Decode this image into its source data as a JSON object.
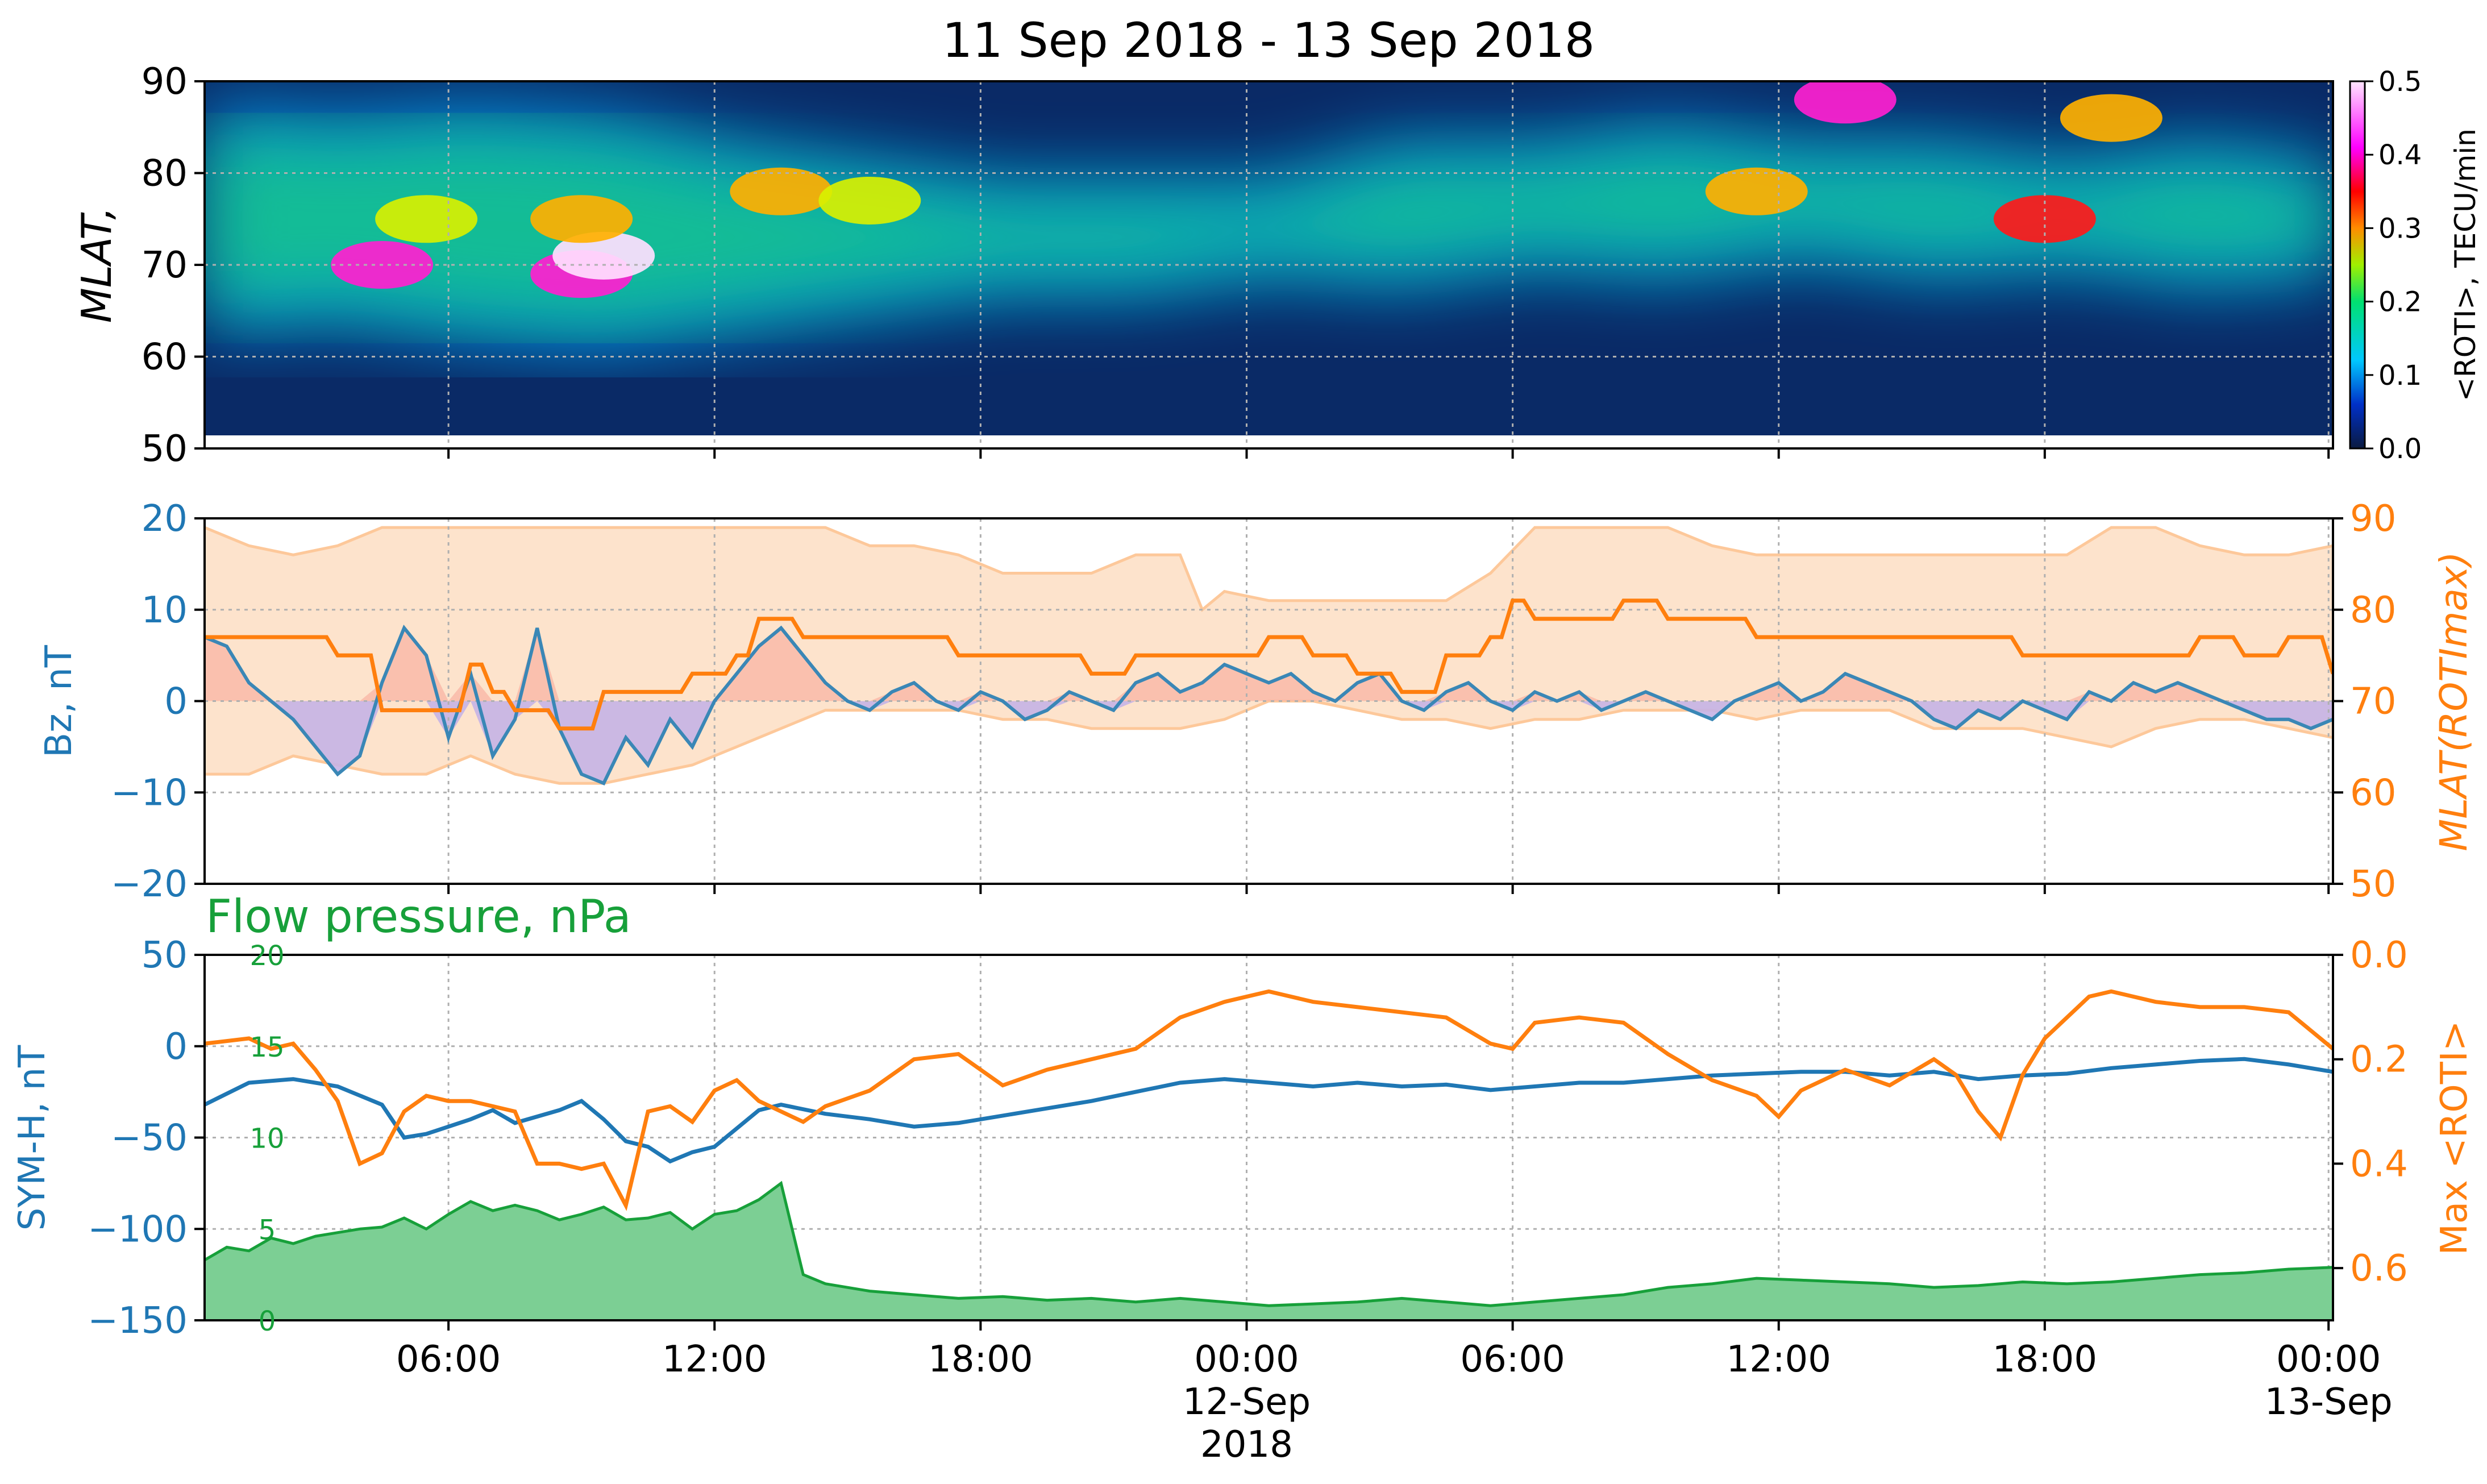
{
  "figure_title": "11 Sep 2018 - 13 Sep 2018",
  "x_axis": {
    "start_hour": 0,
    "end_hour": 48,
    "ticks": [
      {
        "hour": 5.5,
        "label": "06:00",
        "sub1": "",
        "sub2": ""
      },
      {
        "hour": 11.5,
        "label": "12:00",
        "sub1": "",
        "sub2": ""
      },
      {
        "hour": 17.5,
        "label": "18:00",
        "sub1": "",
        "sub2": ""
      },
      {
        "hour": 23.5,
        "label": "00:00",
        "sub1": "12-Sep",
        "sub2": "2018"
      },
      {
        "hour": 29.5,
        "label": "06:00",
        "sub1": "",
        "sub2": ""
      },
      {
        "hour": 35.5,
        "label": "12:00",
        "sub1": "",
        "sub2": ""
      },
      {
        "hour": 41.5,
        "label": "18:00",
        "sub1": "",
        "sub2": ""
      },
      {
        "hour": 47.9,
        "label": "00:00",
        "sub1": "13-Sep",
        "sub2": ""
      }
    ]
  },
  "colors": {
    "bz": "#3a87b6",
    "symh": "#1f77b4",
    "mlat": "#ff7f0e",
    "mlat_band": "#fde3cc",
    "mlat_band_edge": "#fdc89a",
    "flow": "#17a03a",
    "flow_fill": "#7ccf94",
    "pos_fill": "#f8b4a4",
    "neg_fill": "#c5b3e6",
    "grid": "#b0b0b0"
  },
  "chart_data": [
    {
      "type": "heatmap",
      "panel": "top",
      "ylabel": "MLAT,",
      "ylim": [
        50,
        90
      ],
      "yticks": [
        "50",
        "60",
        "70",
        "80",
        "90"
      ],
      "colorbar_label": "<ROTI>, TECU/min",
      "colorbar_range": [
        0.0,
        0.5
      ],
      "colorbar_ticks": [
        "0.0",
        "0.1",
        "0.2",
        "0.3",
        "0.4",
        "0.5"
      ],
      "hot_spots": [
        {
          "hour": 4.0,
          "mlat": 70,
          "value": 0.36
        },
        {
          "hour": 8.5,
          "mlat": 69,
          "value": 0.42
        },
        {
          "hour": 9.0,
          "mlat": 71,
          "value": 0.48
        },
        {
          "hour": 8.5,
          "mlat": 75,
          "value": 0.28
        },
        {
          "hour": 5.0,
          "mlat": 75,
          "value": 0.24
        },
        {
          "hour": 13.0,
          "mlat": 78,
          "value": 0.26
        },
        {
          "hour": 15.0,
          "mlat": 77,
          "value": 0.22
        },
        {
          "hour": 35.0,
          "mlat": 78,
          "value": 0.28
        },
        {
          "hour": 41.5,
          "mlat": 75,
          "value": 0.34
        },
        {
          "hour": 43.0,
          "mlat": 86,
          "value": 0.28
        },
        {
          "hour": 37.0,
          "mlat": 88,
          "value": 0.36
        }
      ],
      "band": {
        "hours": [
          0,
          3,
          6,
          9,
          12,
          15,
          18,
          21,
          24,
          27,
          30,
          33,
          36,
          39,
          42,
          45,
          48
        ],
        "lower": [
          64,
          65,
          63,
          62,
          64,
          66,
          68,
          68,
          70,
          69,
          71,
          70,
          72,
          70,
          71,
          69,
          70
        ],
        "upper": [
          86,
          85,
          86,
          85,
          82,
          80,
          78,
          78,
          78,
          82,
          82,
          84,
          82,
          82,
          80,
          82,
          80
        ]
      }
    },
    {
      "type": "line",
      "panel": "middle",
      "ylabel": "Bz, nT",
      "y2label": "MLAT(ROTImax)",
      "ylim": [
        -20,
        20
      ],
      "y2lim": [
        50,
        90
      ],
      "yticks": [
        "−20",
        "−10",
        "0",
        "10",
        "20"
      ],
      "y2ticks": [
        "50",
        "60",
        "70",
        "80",
        "90"
      ],
      "bz": {
        "hours": [
          0,
          0.5,
          1,
          1.5,
          2,
          2.5,
          3,
          3.5,
          4,
          4.5,
          5,
          5.5,
          6,
          6.5,
          7,
          7.5,
          8,
          8.5,
          9,
          9.5,
          10,
          10.5,
          11,
          11.5,
          12,
          12.5,
          13,
          13.5,
          14,
          14.5,
          15,
          15.5,
          16,
          16.5,
          17,
          17.5,
          18,
          18.5,
          19,
          19.5,
          20,
          20.5,
          21,
          21.5,
          22,
          22.5,
          23,
          23.5,
          24,
          24.5,
          25,
          25.5,
          26,
          26.5,
          27,
          27.5,
          28,
          28.5,
          29,
          29.5,
          30,
          30.5,
          31,
          31.5,
          32,
          32.5,
          33,
          33.5,
          34,
          34.5,
          35,
          35.5,
          36,
          36.5,
          37,
          37.5,
          38,
          38.5,
          39,
          39.5,
          40,
          40.5,
          41,
          41.5,
          42,
          42.5,
          43,
          43.5,
          44,
          44.5,
          45,
          45.5,
          46,
          46.5,
          47,
          47.5,
          48
        ],
        "values": [
          7,
          6,
          2,
          0,
          -2,
          -5,
          -8,
          -6,
          2,
          8,
          5,
          -4,
          3,
          -6,
          -2,
          8,
          -3,
          -8,
          -9,
          -4,
          -7,
          -2,
          -5,
          0,
          3,
          6,
          8,
          5,
          2,
          0,
          -1,
          1,
          2,
          0,
          -1,
          1,
          0,
          -2,
          -1,
          1,
          0,
          -1,
          2,
          3,
          1,
          2,
          4,
          3,
          2,
          3,
          1,
          0,
          2,
          3,
          0,
          -1,
          1,
          2,
          0,
          -1,
          1,
          0,
          1,
          -1,
          0,
          1,
          0,
          -1,
          -2,
          0,
          1,
          2,
          0,
          1,
          3,
          2,
          1,
          0,
          -2,
          -3,
          -1,
          -2,
          0,
          -1,
          -2,
          1,
          0,
          2,
          1,
          2,
          1,
          0,
          -1,
          -2,
          -2,
          -3,
          -2
        ]
      },
      "mlat_max": {
        "hours": [
          0,
          1,
          2,
          3,
          4,
          5,
          6,
          6.5,
          7,
          7.5,
          8,
          9,
          10,
          11,
          12,
          12.5,
          13,
          13.5,
          14,
          16,
          17,
          18,
          19,
          20,
          21,
          22,
          23,
          24,
          25,
          26,
          27,
          28,
          29,
          29.5,
          30,
          30.5,
          31,
          32,
          33,
          34,
          35,
          36,
          37,
          38,
          39,
          40,
          41,
          42,
          43,
          44,
          45,
          46,
          47,
          48
        ],
        "values": [
          77,
          77,
          77,
          75,
          69,
          69,
          74,
          71,
          69,
          69,
          67,
          71,
          71,
          73,
          75,
          79,
          79,
          77,
          77,
          77,
          75,
          75,
          75,
          73,
          75,
          75,
          75,
          77,
          75,
          73,
          71,
          75,
          77,
          81,
          79,
          79,
          79,
          81,
          79,
          79,
          77,
          77,
          77,
          77,
          77,
          77,
          75,
          75,
          75,
          75,
          77,
          75,
          77,
          73
        ]
      },
      "band_upper": {
        "hours": [
          0,
          1,
          2,
          3,
          4,
          5,
          6,
          8,
          10,
          12,
          14,
          15,
          16,
          17,
          18,
          19,
          20,
          21,
          22,
          22.5,
          23,
          24,
          25,
          26,
          28,
          29,
          30,
          31,
          32,
          33,
          34,
          35,
          36,
          37,
          38,
          39,
          40,
          41,
          42,
          43,
          43.5,
          44,
          45,
          46,
          47,
          48
        ],
        "values": [
          89,
          87,
          86,
          87,
          89,
          89,
          89,
          89,
          89,
          89,
          89,
          87,
          87,
          86,
          84,
          84,
          84,
          86,
          86,
          80,
          82,
          81,
          81,
          81,
          81,
          84,
          89,
          89,
          89,
          89,
          87,
          86,
          86,
          86,
          86,
          86,
          86,
          86,
          86,
          89,
          89,
          89,
          87,
          86,
          86,
          87
        ]
      },
      "band_lower": {
        "hours": [
          0,
          1,
          2,
          3,
          4,
          5,
          6,
          7,
          8,
          9,
          10,
          11,
          12,
          13,
          14,
          15,
          16,
          17,
          18,
          19,
          20,
          21,
          22,
          23,
          24,
          25,
          26,
          27,
          28,
          29,
          30,
          31,
          32,
          33,
          34,
          35,
          36,
          37,
          38,
          39,
          40,
          41,
          42,
          43,
          44,
          45,
          46,
          47,
          48
        ],
        "values": [
          62,
          62,
          64,
          63,
          62,
          62,
          64,
          62,
          61,
          61,
          62,
          63,
          65,
          67,
          69,
          69,
          69,
          69,
          68,
          68,
          67,
          67,
          67,
          68,
          70,
          70,
          69,
          68,
          68,
          67,
          68,
          68,
          69,
          69,
          69,
          68,
          69,
          69,
          69,
          67,
          67,
          67,
          66,
          65,
          67,
          68,
          68,
          67,
          66
        ]
      }
    },
    {
      "type": "line",
      "panel": "bottom",
      "title": "Flow pressure, nPa",
      "ylabel": "SYM-H, nT",
      "y2label": "Max <ROTI>",
      "ylim": [
        -150,
        50
      ],
      "y2lim": [
        0.7,
        0.0
      ],
      "flow_lim": [
        0,
        20
      ],
      "yticks": [
        "−150",
        "−100",
        "−50",
        "0",
        "50"
      ],
      "y2ticks": [
        "0.0",
        "0.2",
        "0.4",
        "0.6"
      ],
      "flow_ticks": [
        "0",
        "5",
        "10",
        "15",
        "20"
      ],
      "symh": {
        "hours": [
          0,
          1,
          2,
          3,
          4,
          4.5,
          5,
          6,
          6.5,
          7,
          8,
          8.5,
          9,
          9.5,
          10,
          10.5,
          11,
          11.5,
          12,
          12.5,
          13,
          14,
          15,
          16,
          17,
          18,
          19,
          20,
          21,
          22,
          23,
          24,
          25,
          26,
          27,
          28,
          29,
          30,
          31,
          32,
          33,
          34,
          35,
          36,
          37,
          38,
          39,
          40,
          41,
          42,
          43,
          44,
          45,
          46,
          47,
          48
        ],
        "values": [
          -32,
          -20,
          -18,
          -22,
          -32,
          -50,
          -48,
          -40,
          -35,
          -42,
          -35,
          -30,
          -40,
          -52,
          -55,
          -63,
          -58,
          -55,
          -45,
          -35,
          -32,
          -37,
          -40,
          -44,
          -42,
          -38,
          -34,
          -30,
          -25,
          -20,
          -18,
          -20,
          -22,
          -20,
          -22,
          -21,
          -24,
          -22,
          -20,
          -20,
          -18,
          -16,
          -15,
          -14,
          -14,
          -16,
          -14,
          -18,
          -16,
          -15,
          -12,
          -10,
          -8,
          -7,
          -10,
          -14
        ]
      },
      "max_roti": {
        "hours": [
          0,
          1,
          1.5,
          2,
          2.5,
          3,
          3.5,
          4,
          4.5,
          5,
          5.5,
          6,
          6.5,
          7,
          7.5,
          8,
          8.5,
          9,
          9.5,
          10,
          10.5,
          11,
          11.5,
          12,
          12.5,
          13,
          13.5,
          14,
          15,
          16,
          17,
          18,
          19,
          20,
          21,
          22,
          23,
          24,
          25,
          26,
          27,
          28,
          29,
          29.5,
          30,
          31,
          32,
          33,
          34,
          35,
          35.5,
          36,
          37,
          38,
          39,
          39.5,
          40,
          40.5,
          41,
          41.5,
          42,
          42.5,
          43,
          44,
          45,
          46,
          47,
          48
        ],
        "values": [
          0.17,
          0.16,
          0.18,
          0.17,
          0.22,
          0.28,
          0.4,
          0.38,
          0.3,
          0.27,
          0.28,
          0.28,
          0.29,
          0.3,
          0.4,
          0.4,
          0.41,
          0.4,
          0.48,
          0.3,
          0.29,
          0.32,
          0.26,
          0.24,
          0.28,
          0.3,
          0.32,
          0.29,
          0.26,
          0.2,
          0.19,
          0.25,
          0.22,
          0.2,
          0.18,
          0.12,
          0.09,
          0.07,
          0.09,
          0.1,
          0.11,
          0.12,
          0.17,
          0.18,
          0.13,
          0.12,
          0.13,
          0.19,
          0.24,
          0.27,
          0.31,
          0.26,
          0.22,
          0.25,
          0.2,
          0.23,
          0.3,
          0.35,
          0.23,
          0.16,
          0.12,
          0.08,
          0.07,
          0.09,
          0.1,
          0.1,
          0.11,
          0.18
        ]
      },
      "flow_pressure": {
        "hours": [
          0,
          0.5,
          1,
          1.5,
          2,
          2.5,
          3,
          3.5,
          4,
          4.5,
          5,
          5.5,
          6,
          6.5,
          7,
          7.5,
          8,
          8.5,
          9,
          9.5,
          10,
          10.5,
          11,
          11.5,
          12,
          12.5,
          13,
          13.5,
          14,
          15,
          16,
          17,
          18,
          19,
          20,
          21,
          22,
          23,
          24,
          25,
          26,
          27,
          28,
          29,
          30,
          31,
          32,
          33,
          34,
          35,
          36,
          37,
          38,
          39,
          40,
          41,
          42,
          43,
          44,
          45,
          46,
          47,
          48
        ],
        "values": [
          3.3,
          4.0,
          3.8,
          4.5,
          4.2,
          4.6,
          4.8,
          5.0,
          5.1,
          5.6,
          5.0,
          5.8,
          6.5,
          6.0,
          6.3,
          6.0,
          5.5,
          5.8,
          6.2,
          5.5,
          5.6,
          5.9,
          5.0,
          5.8,
          6.0,
          6.6,
          7.5,
          2.5,
          2.0,
          1.6,
          1.4,
          1.2,
          1.3,
          1.1,
          1.2,
          1.0,
          1.2,
          1.0,
          0.8,
          0.9,
          1.0,
          1.2,
          1.0,
          0.8,
          1.0,
          1.2,
          1.4,
          1.8,
          2.0,
          2.3,
          2.2,
          2.1,
          2.0,
          1.8,
          1.9,
          2.1,
          2.0,
          2.1,
          2.3,
          2.5,
          2.6,
          2.8,
          2.9
        ]
      }
    }
  ]
}
